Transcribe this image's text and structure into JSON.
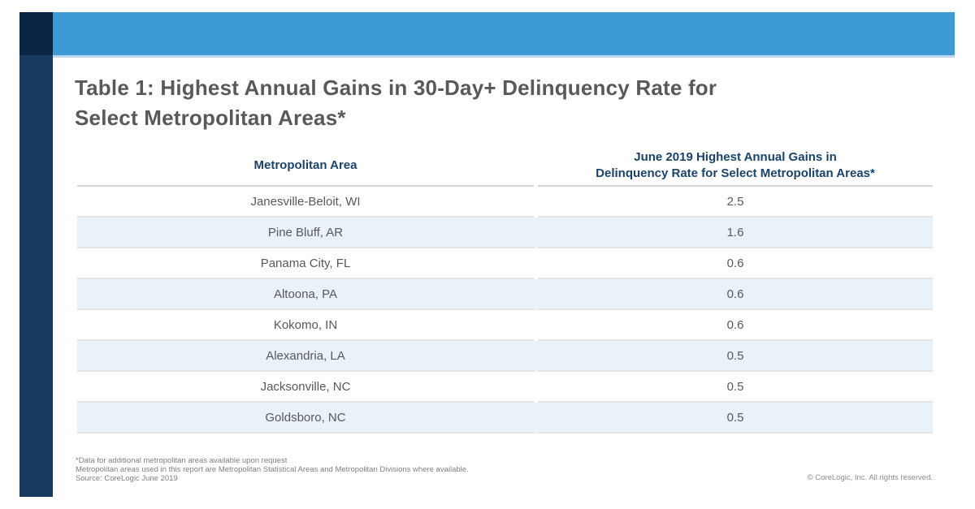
{
  "page": {
    "title_line1": "Table 1: Highest Annual Gains in 30-Day+ Delinquency Rate for",
    "title_line2": "Select Metropolitan Areas*"
  },
  "table": {
    "col1_header": "Metropolitan Area",
    "col2_header_line1": "June 2019 Highest Annual Gains in",
    "col2_header_line2": "Delinquency Rate for Select Metropolitan Areas*",
    "rows": [
      {
        "area": "Janesville-Beloit, WI",
        "value": "2.5"
      },
      {
        "area": "Pine Bluff, AR",
        "value": "1.6"
      },
      {
        "area": "Panama City, FL",
        "value": "0.6"
      },
      {
        "area": "Altoona, PA",
        "value": "0.6"
      },
      {
        "area": "Kokomo, IN",
        "value": "0.6"
      },
      {
        "area": "Alexandria, LA",
        "value": "0.5"
      },
      {
        "area": "Jacksonville, NC",
        "value": "0.5"
      },
      {
        "area": "Goldsboro, NC",
        "value": "0.5"
      }
    ]
  },
  "footnotes": [
    "*Data for additional metropolitan areas available upon request",
    "Metropolitan areas used in this report are Metropolitan Statistical Areas and Metropolitan Divisions where available.",
    "Source: CoreLogic June 2019"
  ],
  "copyright": "© CoreLogic, Inc. All rights reserved.",
  "colors": {
    "top_bar_blue": "#3d9ad7",
    "top_bar_edge": "#bcd9ee",
    "left_bar_navy": "#16395d",
    "left_bar_dark_navy": "#0a2445",
    "header_text_navy": "#1b4269",
    "row_stripe_blue": "#e9f2f9",
    "body_text_gray": "#58595b",
    "footnote_gray": "#7f7f7f"
  }
}
